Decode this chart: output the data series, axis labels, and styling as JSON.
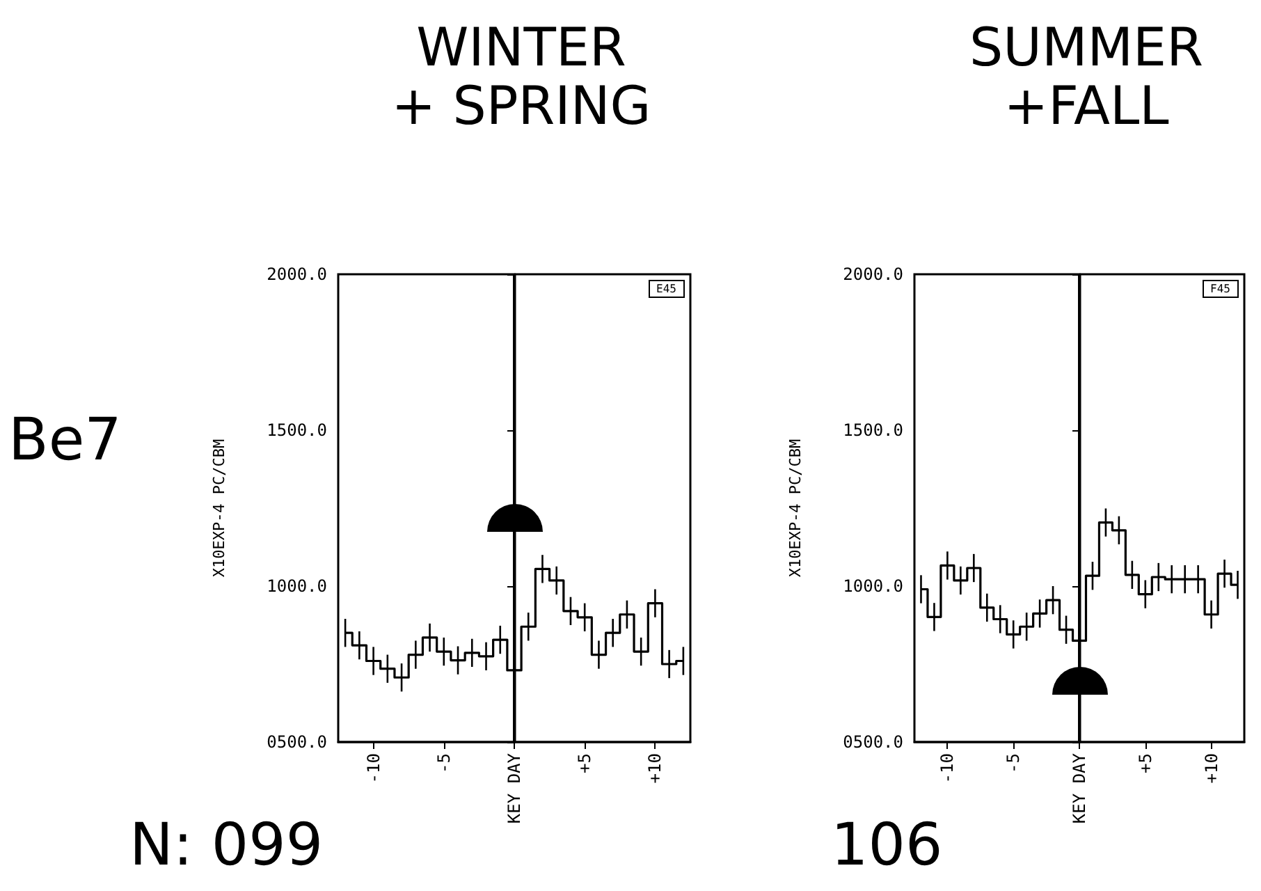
{
  "chart_data": [
    {
      "type": "step",
      "title": "WINTER\n+ SPRING",
      "ylabel": "X10EXP-4 PC/CBM",
      "annotations": [
        "E45",
        "Be7",
        "N: 099"
      ],
      "x": [
        -12,
        -11,
        -10,
        -9,
        -8,
        -7,
        -6,
        -5,
        -4,
        -3,
        -2,
        -1,
        0,
        1,
        2,
        3,
        4,
        5,
        6,
        7,
        8,
        9,
        10,
        11,
        12
      ],
      "series": [
        {
          "color": "#000000",
          "values": [
            850,
            810,
            760,
            735,
            707,
            780,
            835,
            790,
            762,
            786,
            775,
            828,
            730,
            870,
            1055,
            1018,
            920,
            900,
            780,
            850,
            909,
            790,
            945,
            750,
            760
          ],
          "errors": [
            45,
            45,
            45,
            45,
            45,
            45,
            45,
            45,
            45,
            45,
            45,
            45,
            45,
            45,
            45,
            45,
            45,
            45,
            45,
            45,
            45,
            45,
            45,
            45,
            45
          ]
        }
      ],
      "xlim": [
        -12.5,
        12.5
      ],
      "xticks": [
        {
          "value": -10,
          "label": "-10"
        },
        {
          "value": -5,
          "label": "-5"
        },
        {
          "value": 0,
          "label": "KEY DAY"
        },
        {
          "value": 5,
          "label": "+5"
        },
        {
          "value": 10,
          "label": "+10"
        }
      ],
      "ylim": [
        500,
        2000
      ],
      "yticks": [
        {
          "value": 500,
          "label": "0500.0"
        },
        {
          "value": 1000,
          "label": "1000.0"
        },
        {
          "value": 1500,
          "label": "1500.0"
        },
        {
          "value": 2000,
          "label": "2000.0"
        }
      ],
      "ref_lines": [
        {
          "axis": "x",
          "value": 0,
          "color": "#000000"
        }
      ],
      "grid": false,
      "marker": "none",
      "line_style": "solid"
    },
    {
      "type": "step",
      "title": "SUMMER\n+FALL",
      "ylabel": "X10EXP-4 PC/CBM",
      "annotations": [
        "F45",
        "106"
      ],
      "x": [
        -12,
        -11,
        -10,
        -9,
        -8,
        -7,
        -6,
        -5,
        -4,
        -3,
        -2,
        -1,
        0,
        1,
        2,
        3,
        4,
        5,
        6,
        7,
        8,
        9,
        10,
        11,
        12
      ],
      "series": [
        {
          "color": "#000000",
          "values": [
            990,
            901,
            1066,
            1018,
            1058,
            931,
            894,
            845,
            870,
            912,
            955,
            860,
            825,
            1033,
            1204,
            1179,
            1036,
            974,
            1029,
            1022,
            1022,
            1022,
            909,
            1040,
            1004
          ],
          "errors": [
            45,
            45,
            45,
            45,
            45,
            45,
            45,
            45,
            45,
            45,
            45,
            45,
            45,
            45,
            45,
            45,
            45,
            45,
            45,
            45,
            45,
            45,
            45,
            45,
            45
          ]
        }
      ],
      "xlim": [
        -12.5,
        12.5
      ],
      "xticks": [
        {
          "value": -10,
          "label": "-10"
        },
        {
          "value": -5,
          "label": "-5"
        },
        {
          "value": 0,
          "label": "KEY DAY"
        },
        {
          "value": 5,
          "label": "+5"
        },
        {
          "value": 10,
          "label": "+10"
        }
      ],
      "ylim": [
        500,
        2000
      ],
      "yticks": [
        {
          "value": 500,
          "label": "0500.0"
        },
        {
          "value": 1000,
          "label": "1000.0"
        },
        {
          "value": 1500,
          "label": "1500.0"
        },
        {
          "value": 2000,
          "label": "2000.0"
        }
      ],
      "ref_lines": [
        {
          "axis": "x",
          "value": 0,
          "color": "#000000"
        }
      ],
      "grid": false,
      "marker": "none",
      "line_style": "solid"
    }
  ]
}
